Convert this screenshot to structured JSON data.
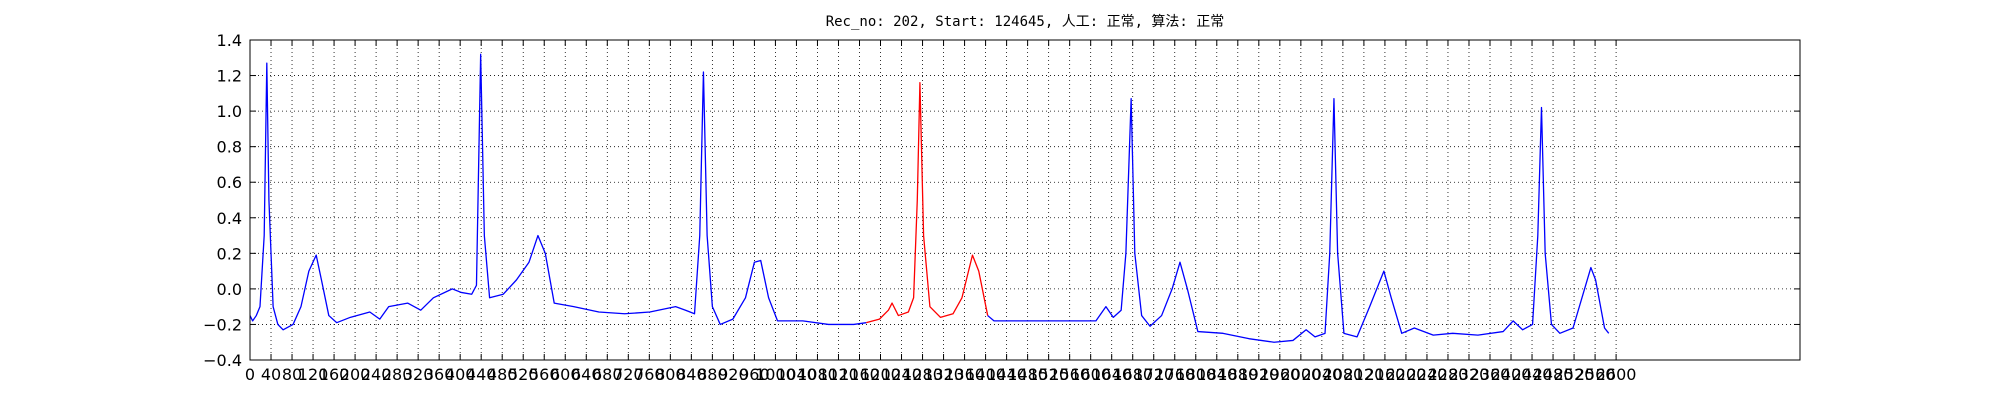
{
  "chart_data": {
    "type": "line",
    "title": "Rec_no: 202, Start: 124645, 人工: 正常, 算法: 正常",
    "xlim": [
      0,
      2950
    ],
    "xticks": [
      0,
      40,
      80,
      120,
      160,
      200,
      240,
      280,
      320,
      360,
      400,
      440,
      480,
      520,
      560,
      600,
      640,
      680,
      720,
      760,
      800,
      840,
      880,
      920,
      960,
      1000,
      1040,
      1080,
      1120,
      1160,
      1200,
      1240,
      1280,
      1320,
      1360,
      1400,
      1440,
      1480,
      1520,
      1560,
      1600,
      1640,
      1680,
      1720,
      1760,
      1800,
      1840,
      1880,
      1920,
      1960,
      2000,
      2040,
      2080,
      2120,
      2160,
      2200,
      2240,
      2280,
      2320,
      2360,
      2400,
      2440,
      2480,
      2520,
      2560,
      2600
    ],
    "ylim": [
      -0.4,
      1.4
    ],
    "yticks": [
      {
        "value": -0.4,
        "label": "−0.4"
      },
      {
        "value": -0.2,
        "label": "−0.2"
      },
      {
        "value": 0,
        "label": "0.0"
      },
      0.2,
      0.4,
      0.6,
      0.8,
      {
        "value": 1,
        "label": "1.0"
      },
      1.2,
      1.4
    ],
    "grid": true,
    "series": [
      {
        "color": "#0000ff",
        "x": [
          0,
          5,
          12,
          19,
          27,
          32,
          36,
          44,
          53,
          63,
          82,
          97,
          112,
          126,
          136,
          150,
          165,
          191,
          228,
          247,
          264,
          300,
          325,
          349,
          385,
          402,
          422,
          431,
          439,
          446,
          456,
          482,
          507,
          531,
          548,
          562,
          579,
          616,
          664,
          713,
          761,
          810,
          829,
          846,
          856,
          863,
          870,
          880,
          895,
          919,
          943,
          960,
          972,
          987,
          1004,
          1052,
          1101,
          1149,
          1173
        ],
        "values": [
          -0.15,
          -0.18,
          -0.15,
          -0.1,
          0.3,
          1.27,
          0.5,
          -0.1,
          -0.2,
          -0.23,
          -0.2,
          -0.1,
          0.1,
          0.19,
          0.05,
          -0.15,
          -0.19,
          -0.16,
          -0.13,
          -0.17,
          -0.1,
          -0.08,
          -0.12,
          -0.05,
          0.0,
          -0.02,
          -0.03,
          0.02,
          1.32,
          0.3,
          -0.05,
          -0.03,
          0.05,
          0.15,
          0.3,
          0.2,
          -0.08,
          -0.1,
          -0.13,
          -0.14,
          -0.13,
          -0.1,
          -0.12,
          -0.14,
          0.3,
          1.22,
          0.3,
          -0.1,
          -0.2,
          -0.17,
          -0.05,
          0.15,
          0.16,
          -0.05,
          -0.18,
          -0.18,
          -0.2,
          -0.2,
          -0.19
        ]
      },
      {
        "color": "#ff0000",
        "x": [
          1173,
          1198,
          1215,
          1222,
          1234,
          1253,
          1263,
          1270,
          1275,
          1282,
          1294,
          1314,
          1338,
          1355,
          1375,
          1387,
          1404
        ],
        "values": [
          -0.19,
          -0.17,
          -0.12,
          -0.08,
          -0.15,
          -0.13,
          -0.05,
          0.5,
          1.16,
          0.3,
          -0.1,
          -0.16,
          -0.14,
          -0.05,
          0.19,
          0.1,
          -0.15
        ]
      },
      {
        "color": "#0000ff",
        "x": [
          1404,
          1416,
          1464,
          1537,
          1610,
          1629,
          1643,
          1658,
          1667,
          1677,
          1684,
          1697,
          1713,
          1735,
          1755,
          1770,
          1784,
          1804,
          1852,
          1901,
          1949,
          1985,
          2010,
          2027,
          2046,
          2055,
          2063,
          2070,
          2082,
          2107,
          2131,
          2158,
          2172,
          2192,
          2216,
          2252,
          2289,
          2337,
          2385,
          2404,
          2422,
          2441,
          2451,
          2458,
          2465,
          2477,
          2493,
          2518,
          2535,
          2552,
          2561,
          2578,
          2586
        ],
        "values": [
          -0.15,
          -0.18,
          -0.18,
          -0.18,
          -0.18,
          -0.1,
          -0.16,
          -0.12,
          0.2,
          1.07,
          0.2,
          -0.15,
          -0.21,
          -0.15,
          0.0,
          0.15,
          0.0,
          -0.24,
          -0.25,
          -0.28,
          -0.3,
          -0.29,
          -0.23,
          -0.27,
          -0.25,
          0.2,
          1.07,
          0.2,
          -0.25,
          -0.27,
          -0.1,
          0.1,
          -0.05,
          -0.25,
          -0.22,
          -0.26,
          -0.25,
          -0.26,
          -0.24,
          -0.18,
          -0.23,
          -0.2,
          0.3,
          1.02,
          0.2,
          -0.2,
          -0.25,
          -0.22,
          -0.05,
          0.12,
          0.05,
          -0.22,
          -0.25
        ]
      }
    ]
  }
}
